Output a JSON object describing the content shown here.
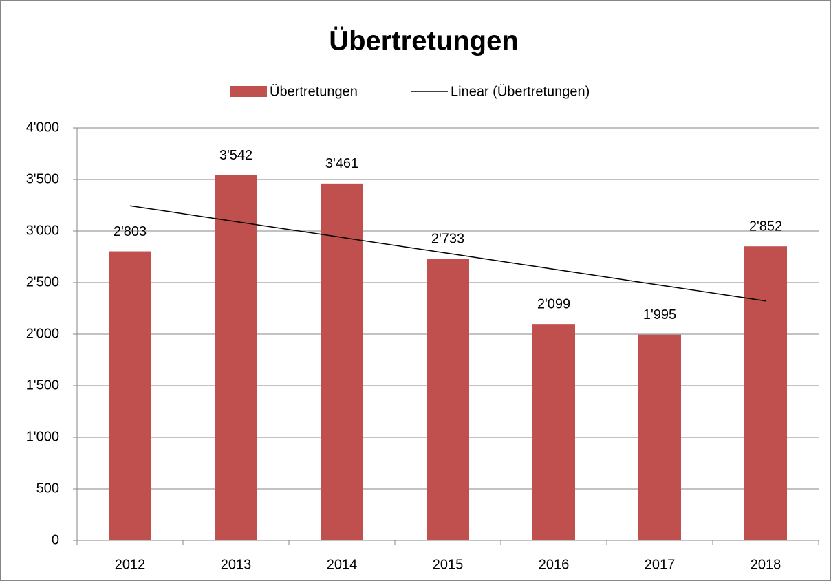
{
  "chart_data": {
    "type": "bar",
    "title": "Übertretungen",
    "categories": [
      "2012",
      "2013",
      "2014",
      "2015",
      "2016",
      "2017",
      "2018"
    ],
    "series": [
      {
        "name": "Übertretungen",
        "type": "bar",
        "color": "#c0504d",
        "values": [
          2803,
          3542,
          3461,
          2733,
          2099,
          1995,
          2852
        ],
        "value_labels": [
          "2'803",
          "3'542",
          "3'461",
          "2'733",
          "2'099",
          "1'995",
          "2'852"
        ]
      },
      {
        "name": "Linear (Übertretungen)",
        "type": "line",
        "color": "#000000",
        "values": [
          3245,
          3091,
          2938,
          2784,
          2630,
          2476,
          2322
        ]
      }
    ],
    "ylim": [
      0,
      4000
    ],
    "yticks": [
      0,
      500,
      {
        "value": 1000,
        "label": "1'000"
      },
      {
        "value": 1500,
        "label": "1'500"
      },
      {
        "value": 2000,
        "label": "2'000"
      },
      {
        "value": 2500,
        "label": "2'500"
      },
      {
        "value": 3000,
        "label": "3'000"
      },
      {
        "value": 3500,
        "label": "3'500"
      },
      {
        "value": 4000,
        "label": "4'000"
      }
    ],
    "grid": true,
    "legend": "top"
  }
}
